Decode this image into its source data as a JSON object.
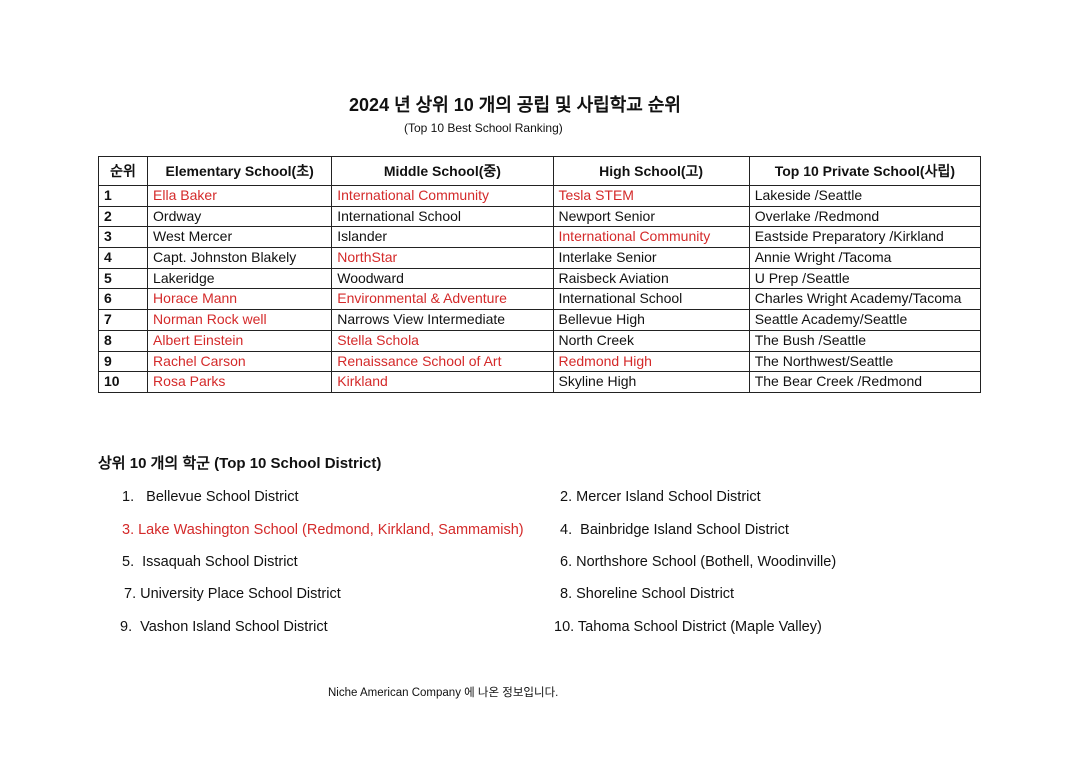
{
  "title": "2024 년 상위 10 개의 공립 및 사립학교 순위",
  "subtitle": "(Top 10 Best School Ranking)",
  "colors": {
    "highlight": "#d42a2a",
    "text": "#111111"
  },
  "table": {
    "headers": [
      "순위",
      "Elementary School(초)",
      "Middle School(중)",
      "High School(고)",
      "Top 10 Private School(사립)"
    ],
    "rows": [
      {
        "rank": "1",
        "cells": [
          "Ella Baker",
          "International Community",
          "Tesla STEM",
          "Lakeside /Seattle"
        ],
        "red": [
          true,
          true,
          true,
          false
        ]
      },
      {
        "rank": "2",
        "cells": [
          "Ordway",
          "International School",
          "Newport Senior",
          "Overlake /Redmond"
        ],
        "red": [
          false,
          false,
          false,
          false
        ]
      },
      {
        "rank": "3",
        "cells": [
          "West Mercer",
          "Islander",
          "International Community",
          "Eastside Preparatory /Kirkland"
        ],
        "red": [
          false,
          false,
          true,
          false
        ]
      },
      {
        "rank": "4",
        "cells": [
          "Capt. Johnston Blakely",
          "NorthStar",
          "Interlake Senior",
          "Annie Wright /Tacoma"
        ],
        "red": [
          false,
          true,
          false,
          false
        ]
      },
      {
        "rank": "5",
        "cells": [
          "Lakeridge",
          "Woodward",
          "Raisbeck Aviation",
          "U Prep /Seattle"
        ],
        "red": [
          false,
          false,
          false,
          false
        ]
      },
      {
        "rank": "6",
        "cells": [
          "Horace Mann",
          "Environmental & Adventure",
          "International School",
          "Charles Wright Academy/Tacoma"
        ],
        "red": [
          true,
          true,
          false,
          false
        ]
      },
      {
        "rank": "7",
        "cells": [
          "Norman Rock well",
          "Narrows View Intermediate",
          "Bellevue High",
          "Seattle Academy/Seattle"
        ],
        "red": [
          true,
          false,
          false,
          false
        ]
      },
      {
        "rank": "8",
        "cells": [
          "Albert Einstein",
          "Stella Schola",
          "North Creek",
          "The Bush /Seattle"
        ],
        "red": [
          true,
          true,
          false,
          false
        ]
      },
      {
        "rank": "9",
        "cells": [
          "Rachel Carson",
          "Renaissance School of Art",
          "Redmond High",
          "The Northwest/Seattle"
        ],
        "red": [
          true,
          true,
          true,
          false
        ]
      },
      {
        "rank": "10",
        "cells": [
          "Rosa Parks",
          "Kirkland",
          "Skyline High",
          "The Bear Creek /Redmond"
        ],
        "red": [
          true,
          true,
          false,
          false
        ]
      }
    ]
  },
  "districts": {
    "heading": "상위 10 개의 학군 (Top 10 School District)",
    "items": [
      {
        "label": "1.   Bellevue School District",
        "red": false
      },
      {
        "label": "2. Mercer Island School District",
        "red": false
      },
      {
        "label": "3. Lake Washington School (Redmond, Kirkland, Sammamish)",
        "red": true
      },
      {
        "label": "4.  Bainbridge Island School District",
        "red": false
      },
      {
        "label": "5.  Issaquah School District",
        "red": false
      },
      {
        "label": "6. Northshore School (Bothell, Woodinville)",
        "red": false
      },
      {
        "label": "7. University Place School District",
        "red": false
      },
      {
        "label": "8. Shoreline School District",
        "red": false
      },
      {
        "label": "9.  Vashon Island School District",
        "red": false
      },
      {
        "label": "10. Tahoma School District (Maple Valley)",
        "red": false
      }
    ]
  },
  "footer": "Niche American Company 에 나온 정보입니다."
}
